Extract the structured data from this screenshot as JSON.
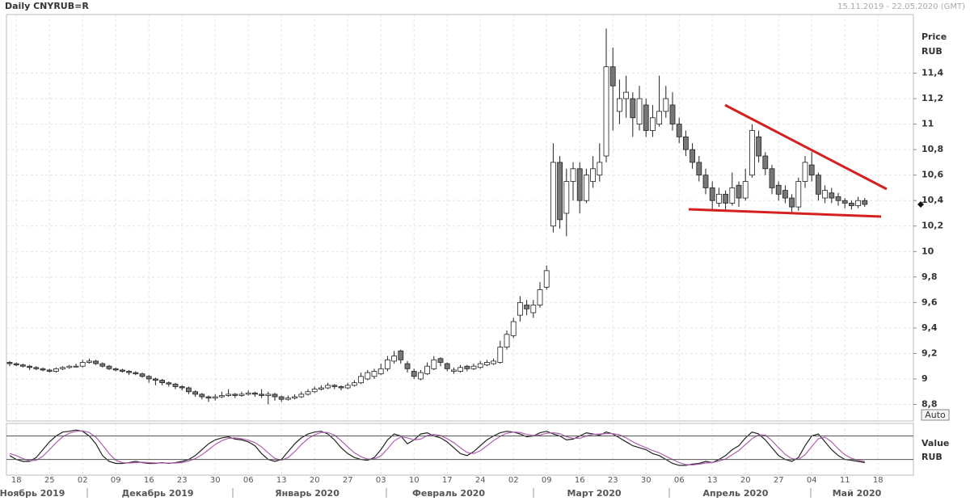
{
  "chart_data": {
    "type": "candlestick",
    "title": "Daily CNYRUB=R",
    "date_range": "15.11.2019 - 22.05.2020 (GMT)",
    "y_label": "Price",
    "y_unit": "RUB",
    "auto_button": "Auto",
    "up_color": "#ffffff",
    "down_color": "#777777",
    "grid": true,
    "ylim": [
      8.67,
      11.86
    ],
    "yticks": [
      {
        "value": 8.8,
        "label": "8,8"
      },
      9,
      {
        "value": 9.2,
        "label": "9,2"
      },
      {
        "value": 9.4,
        "label": "9,4"
      },
      {
        "value": 9.6,
        "label": "9,6"
      },
      {
        "value": 9.8,
        "label": "9,8"
      },
      10,
      {
        "value": 10.2,
        "label": "10,2"
      },
      {
        "value": 10.4,
        "label": "10,4"
      },
      {
        "value": 10.6,
        "label": "10,6"
      },
      {
        "value": 10.8,
        "label": "10,8"
      },
      11,
      {
        "value": 11.2,
        "label": "11,2"
      },
      {
        "value": 11.4,
        "label": "11,4"
      }
    ],
    "x_tick_labels": [
      "18",
      "25",
      "02",
      "09",
      "16",
      "23",
      "30",
      "06",
      "13",
      "20",
      "27",
      "03",
      "10",
      "17",
      "24",
      "02",
      "09",
      "16",
      "23",
      "30",
      "06",
      "13",
      "20",
      "27",
      "04",
      "11",
      "18"
    ],
    "month_labels": [
      "Ноябрь 2019",
      "Декабрь 2019",
      "Январь 2020",
      "Февраль 2020",
      "Март 2020",
      "Апрель 2020",
      "Май 2020"
    ],
    "candles": [
      [
        9.13,
        9.14,
        9.1,
        9.12
      ],
      [
        9.12,
        9.13,
        9.1,
        9.11
      ],
      [
        9.11,
        9.12,
        9.09,
        9.1
      ],
      [
        9.1,
        9.11,
        9.07,
        9.09
      ],
      [
        9.09,
        9.1,
        9.07,
        9.08
      ],
      [
        9.08,
        9.09,
        9.06,
        9.07
      ],
      [
        9.07,
        9.08,
        9.05,
        9.06
      ],
      [
        9.06,
        9.09,
        9.05,
        9.08
      ],
      [
        9.08,
        9.1,
        9.07,
        9.09
      ],
      [
        9.09,
        9.11,
        9.08,
        9.1
      ],
      [
        9.1,
        9.12,
        9.09,
        9.1
      ],
      [
        9.1,
        9.15,
        9.09,
        9.13
      ],
      [
        9.13,
        9.16,
        9.12,
        9.14
      ],
      [
        9.14,
        9.15,
        9.11,
        9.12
      ],
      [
        9.12,
        9.13,
        9.09,
        9.1
      ],
      [
        9.1,
        9.11,
        9.07,
        9.08
      ],
      [
        9.08,
        9.09,
        9.06,
        9.07
      ],
      [
        9.07,
        9.08,
        9.05,
        9.06
      ],
      [
        9.06,
        9.07,
        9.03,
        9.05
      ],
      [
        9.05,
        9.06,
        9.03,
        9.04
      ],
      [
        9.04,
        9.05,
        9.01,
        9.02
      ],
      [
        9.02,
        9.03,
        8.97,
        9.0
      ],
      [
        9.0,
        9.01,
        8.95,
        8.99
      ],
      [
        8.99,
        9.0,
        8.95,
        8.97
      ],
      [
        8.97,
        8.98,
        8.94,
        8.96
      ],
      [
        8.96,
        8.97,
        8.92,
        8.94
      ],
      [
        8.94,
        8.95,
        8.91,
        8.93
      ],
      [
        8.93,
        8.94,
        8.88,
        8.9
      ],
      [
        8.9,
        8.91,
        8.86,
        8.88
      ],
      [
        8.88,
        8.89,
        8.84,
        8.86
      ],
      [
        8.86,
        8.87,
        8.82,
        8.85
      ],
      [
        8.85,
        8.88,
        8.83,
        8.86
      ],
      [
        8.86,
        8.9,
        8.85,
        8.87
      ],
      [
        8.87,
        8.92,
        8.86,
        8.88
      ],
      [
        8.88,
        8.89,
        8.85,
        8.87
      ],
      [
        8.87,
        8.9,
        8.86,
        8.88
      ],
      [
        8.88,
        8.91,
        8.87,
        8.89
      ],
      [
        8.89,
        8.9,
        8.86,
        8.88
      ],
      [
        8.88,
        8.92,
        8.85,
        8.87
      ],
      [
        8.87,
        8.9,
        8.8,
        8.88
      ],
      [
        8.88,
        8.89,
        8.83,
        8.86
      ],
      [
        8.86,
        8.87,
        8.82,
        8.84
      ],
      [
        8.84,
        8.87,
        8.83,
        8.85
      ],
      [
        8.85,
        8.88,
        8.84,
        8.86
      ],
      [
        8.86,
        8.9,
        8.85,
        8.88
      ],
      [
        8.88,
        8.92,
        8.87,
        8.9
      ],
      [
        8.9,
        8.94,
        8.89,
        8.92
      ],
      [
        8.92,
        8.95,
        8.91,
        8.93
      ],
      [
        8.93,
        8.97,
        8.92,
        8.95
      ],
      [
        8.95,
        8.96,
        8.92,
        8.94
      ],
      [
        8.94,
        8.95,
        8.91,
        8.93
      ],
      [
        8.93,
        8.97,
        8.92,
        8.95
      ],
      [
        8.95,
        8.99,
        8.94,
        8.97
      ],
      [
        8.97,
        9.05,
        8.96,
        9.02
      ],
      [
        9.0,
        9.07,
        8.99,
        9.05
      ],
      [
        9.02,
        9.08,
        9.0,
        9.06
      ],
      [
        9.04,
        9.12,
        9.03,
        9.08
      ],
      [
        9.08,
        9.18,
        9.06,
        9.15
      ],
      [
        9.14,
        9.22,
        9.12,
        9.18
      ],
      [
        9.22,
        9.23,
        9.12,
        9.15
      ],
      [
        9.12,
        9.14,
        9.05,
        9.08
      ],
      [
        9.06,
        9.08,
        9.0,
        9.02
      ],
      [
        9.0,
        9.07,
        8.99,
        9.05
      ],
      [
        9.04,
        9.13,
        9.03,
        9.1
      ],
      [
        9.08,
        9.18,
        9.07,
        9.15
      ],
      [
        9.16,
        9.17,
        9.1,
        9.13
      ],
      [
        9.12,
        9.13,
        9.06,
        9.08
      ],
      [
        9.06,
        9.09,
        9.04,
        9.07
      ],
      [
        9.06,
        9.11,
        9.05,
        9.09
      ],
      [
        9.1,
        9.11,
        9.06,
        9.08
      ],
      [
        9.08,
        9.12,
        9.07,
        9.1
      ],
      [
        9.09,
        9.14,
        9.08,
        9.12
      ],
      [
        9.11,
        9.15,
        9.1,
        9.13
      ],
      [
        9.12,
        9.16,
        9.11,
        9.14
      ],
      [
        9.13,
        9.3,
        9.12,
        9.25
      ],
      [
        9.25,
        9.38,
        9.23,
        9.35
      ],
      [
        9.34,
        9.48,
        9.32,
        9.45
      ],
      [
        9.5,
        9.65,
        9.45,
        9.6
      ],
      [
        9.58,
        9.62,
        9.5,
        9.55
      ],
      [
        9.52,
        9.62,
        9.48,
        9.58
      ],
      [
        9.58,
        9.76,
        9.56,
        9.7
      ],
      [
        9.72,
        9.89,
        9.7,
        9.85
      ],
      [
        10.2,
        10.85,
        10.15,
        10.7
      ],
      [
        10.7,
        10.75,
        10.18,
        10.25
      ],
      [
        10.3,
        10.65,
        10.12,
        10.55
      ],
      [
        10.55,
        10.7,
        10.4,
        10.65
      ],
      [
        10.65,
        10.7,
        10.3,
        10.4
      ],
      [
        10.4,
        10.65,
        10.38,
        10.6
      ],
      [
        10.55,
        10.75,
        10.5,
        10.65
      ],
      [
        10.6,
        10.85,
        10.55,
        10.7
      ],
      [
        10.75,
        11.75,
        10.7,
        11.45
      ],
      [
        11.45,
        11.6,
        10.95,
        11.3
      ],
      [
        11.1,
        11.35,
        11.0,
        11.2
      ],
      [
        11.2,
        11.38,
        11.05,
        11.25
      ],
      [
        11.2,
        11.25,
        10.9,
        11.05
      ],
      [
        11.0,
        11.3,
        10.95,
        11.2
      ],
      [
        11.15,
        11.2,
        10.9,
        10.95
      ],
      [
        10.95,
        11.15,
        10.9,
        11.05
      ],
      [
        11.0,
        11.38,
        10.98,
        11.1
      ],
      [
        11.1,
        11.3,
        11.05,
        11.2
      ],
      [
        11.15,
        11.25,
        10.95,
        11.0
      ],
      [
        11.0,
        11.05,
        10.85,
        10.9
      ],
      [
        10.9,
        10.95,
        10.75,
        10.8
      ],
      [
        10.8,
        10.85,
        10.65,
        10.7
      ],
      [
        10.7,
        10.75,
        10.55,
        10.6
      ],
      [
        10.6,
        10.65,
        10.45,
        10.5
      ],
      [
        10.5,
        10.55,
        10.32,
        10.4
      ],
      [
        10.38,
        10.5,
        10.35,
        10.45
      ],
      [
        10.45,
        10.48,
        10.33,
        10.38
      ],
      [
        10.38,
        10.62,
        10.36,
        10.5
      ],
      [
        10.52,
        10.55,
        10.35,
        10.42
      ],
      [
        10.42,
        10.65,
        10.4,
        10.55
      ],
      [
        10.6,
        11.0,
        10.58,
        10.95
      ],
      [
        10.9,
        10.95,
        10.7,
        10.75
      ],
      [
        10.75,
        10.78,
        10.6,
        10.65
      ],
      [
        10.65,
        10.68,
        10.45,
        10.5
      ],
      [
        10.52,
        10.55,
        10.4,
        10.45
      ],
      [
        10.48,
        10.52,
        10.38,
        10.42
      ],
      [
        10.42,
        10.45,
        10.3,
        10.35
      ],
      [
        10.35,
        10.58,
        10.32,
        10.55
      ],
      [
        10.55,
        10.75,
        10.5,
        10.7
      ],
      [
        10.68,
        10.78,
        10.55,
        10.6
      ],
      [
        10.6,
        10.62,
        10.4,
        10.45
      ],
      [
        10.42,
        10.52,
        10.38,
        10.48
      ],
      [
        10.46,
        10.5,
        10.38,
        10.42
      ],
      [
        10.43,
        10.46,
        10.36,
        10.4
      ],
      [
        10.4,
        10.42,
        10.34,
        10.38
      ],
      [
        10.38,
        10.4,
        10.33,
        10.36
      ],
      [
        10.36,
        10.43,
        10.34,
        10.4
      ],
      [
        10.4,
        10.42,
        10.35,
        10.37
      ]
    ],
    "oscillator": {
      "label": "Value",
      "unit": "RUB",
      "ylim": [
        -20,
        112
      ],
      "levels": [
        20,
        80
      ],
      "series": [
        {
          "color": "#222222",
          "values": [
            30,
            20,
            15,
            15,
            25,
            45,
            65,
            80,
            90,
            92,
            95,
            92,
            80,
            60,
            30,
            15,
            10,
            10,
            12,
            15,
            12,
            10,
            10,
            12,
            10,
            12,
            15,
            20,
            30,
            45,
            60,
            70,
            75,
            78,
            72,
            70,
            65,
            55,
            35,
            20,
            15,
            20,
            40,
            60,
            75,
            85,
            90,
            92,
            85,
            70,
            50,
            35,
            25,
            20,
            18,
            25,
            45,
            70,
            85,
            80,
            60,
            70,
            85,
            88,
            80,
            75,
            65,
            50,
            35,
            30,
            40,
            55,
            70,
            80,
            88,
            92,
            90,
            85,
            78,
            80,
            88,
            92,
            85,
            80,
            70,
            72,
            80,
            88,
            85,
            82,
            90,
            85,
            75,
            65,
            55,
            50,
            45,
            35,
            30,
            20,
            10,
            5,
            5,
            8,
            10,
            15,
            12,
            20,
            30,
            45,
            55,
            75,
            90,
            85,
            70,
            50,
            30,
            20,
            15,
            25,
            55,
            80,
            85,
            65,
            45,
            30,
            20,
            18,
            15,
            12
          ]
        },
        {
          "color": "#b060b0",
          "values": [
            35,
            30,
            22,
            17,
            18,
            28,
            45,
            63,
            78,
            87,
            92,
            93,
            89,
            77,
            57,
            35,
            18,
            12,
            11,
            12,
            13,
            12,
            11,
            11,
            11,
            11,
            12,
            16,
            22,
            32,
            45,
            58,
            68,
            74,
            75,
            73,
            69,
            63,
            52,
            37,
            23,
            18,
            25,
            40,
            58,
            73,
            83,
            89,
            89,
            82,
            68,
            52,
            37,
            27,
            21,
            21,
            29,
            47,
            67,
            78,
            75,
            70,
            72,
            81,
            84,
            81,
            73,
            63,
            50,
            38,
            35,
            42,
            55,
            68,
            79,
            87,
            90,
            89,
            84,
            81,
            82,
            87,
            88,
            86,
            78,
            74,
            74,
            80,
            84,
            85,
            86,
            86,
            83,
            75,
            65,
            57,
            50,
            43,
            37,
            28,
            20,
            12,
            7,
            6,
            8,
            11,
            12,
            16,
            21,
            32,
            43,
            58,
            73,
            83,
            82,
            68,
            50,
            33,
            22,
            20,
            32,
            53,
            73,
            77,
            65,
            47,
            32,
            23,
            18,
            15
          ]
        }
      ]
    }
  }
}
